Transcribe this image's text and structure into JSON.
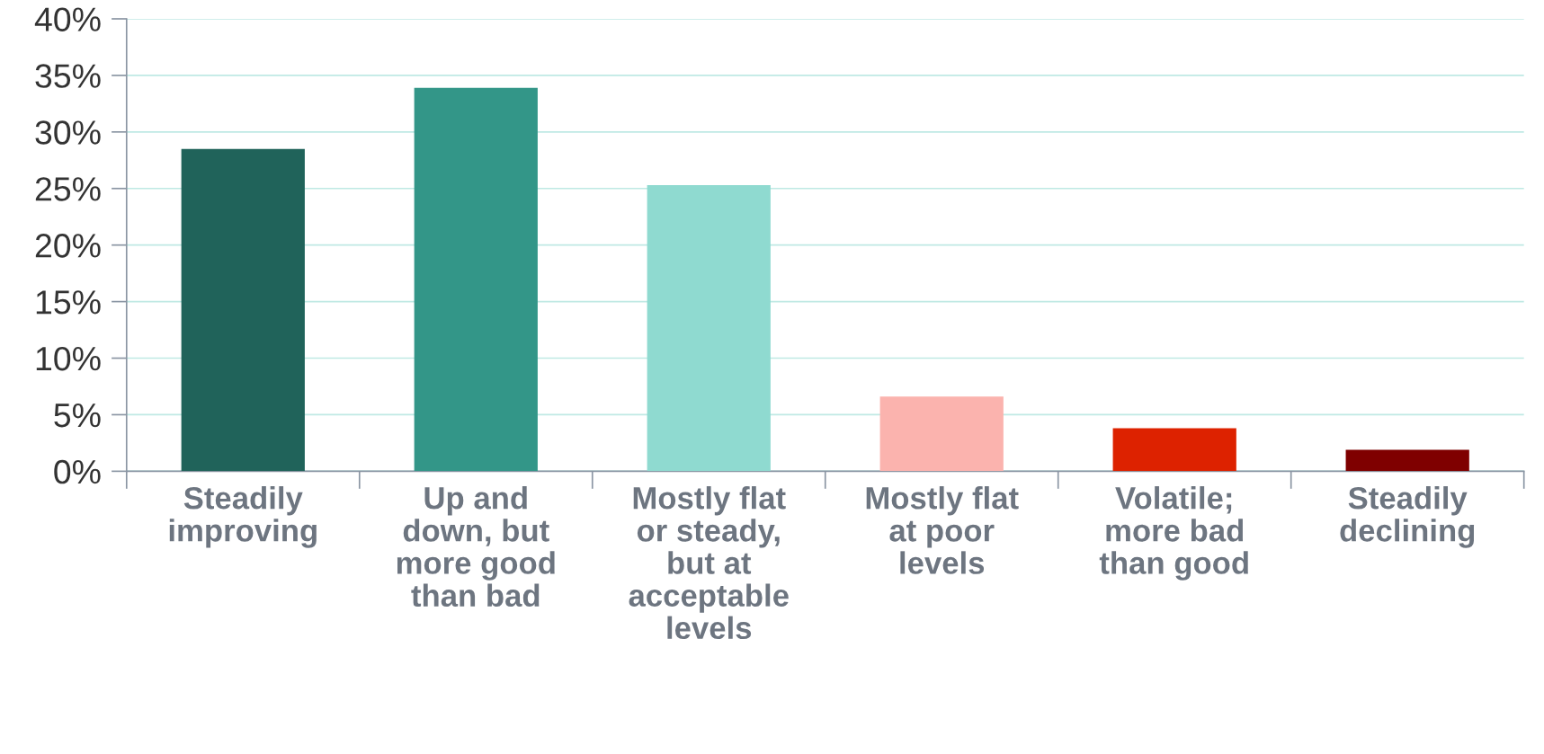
{
  "chart_data": {
    "type": "bar",
    "categories": [
      "Steadily\nimproving",
      "Up and\ndown, but\nmore good\nthan bad",
      "Mostly flat\nor steady,\nbut at\nacceptable\nlevels",
      "Mostly flat\nat poor\nlevels",
      "Volatile;\nmore bad\nthan good",
      "Steadily\ndeclining"
    ],
    "values": [
      28.5,
      33.9,
      25.3,
      6.6,
      3.8,
      1.9
    ],
    "colors": [
      "#20635a",
      "#339688",
      "#8fdad0",
      "#fbb3ae",
      "#dd2200",
      "#7f0000"
    ],
    "ylim": [
      0,
      40
    ],
    "yticks": [
      {
        "value": 0,
        "label": "0%"
      },
      {
        "value": 5,
        "label": "5%"
      },
      {
        "value": 10,
        "label": "10%"
      },
      {
        "value": 15,
        "label": "15%"
      },
      {
        "value": 20,
        "label": "20%"
      },
      {
        "value": 25,
        "label": "25%"
      },
      {
        "value": 30,
        "label": "30%"
      },
      {
        "value": 35,
        "label": "35%"
      },
      {
        "value": 40,
        "label": "40%"
      }
    ],
    "grid": "y"
  }
}
